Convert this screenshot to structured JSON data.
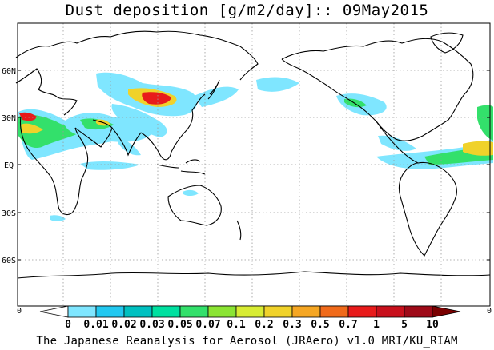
{
  "title": "Dust deposition [g/m2/day]:: 09May2015",
  "lat_labels": [
    "60N",
    "30N",
    "EQ",
    "30S",
    "60S"
  ],
  "colorbar": {
    "left_end": "0",
    "right_end": "0",
    "labels": [
      "0",
      "0.01",
      "0.02",
      "0.03",
      "0.05",
      "0.07",
      "0.1",
      "0.2",
      "0.3",
      "0.5",
      "0.7",
      "1",
      "5",
      "10"
    ],
    "colors": [
      "#ffffff",
      "#7fe6ff",
      "#22c8f0",
      "#00c0c0",
      "#00e0a0",
      "#33e06b",
      "#8be433",
      "#d8ec33",
      "#f0d22a",
      "#f5a623",
      "#f06a1a",
      "#e81b1b",
      "#c8101c",
      "#9e0a18",
      "#7a0000"
    ]
  },
  "map": {
    "background": "#ffffff",
    "coastline_color": "#000000",
    "grid_color": "#9a9a9a",
    "dust_colors": {
      "low": "#7fe6ff",
      "low_mid": "#33e06b",
      "mid": "#f0d22a",
      "high": "#f5a623",
      "very_high": "#e81b1b",
      "extreme": "#c8101c"
    }
  },
  "credit": "The Japanese Reanalysis for Aerosol (JRAero) v1.0 MRI/KU_RIAM"
}
